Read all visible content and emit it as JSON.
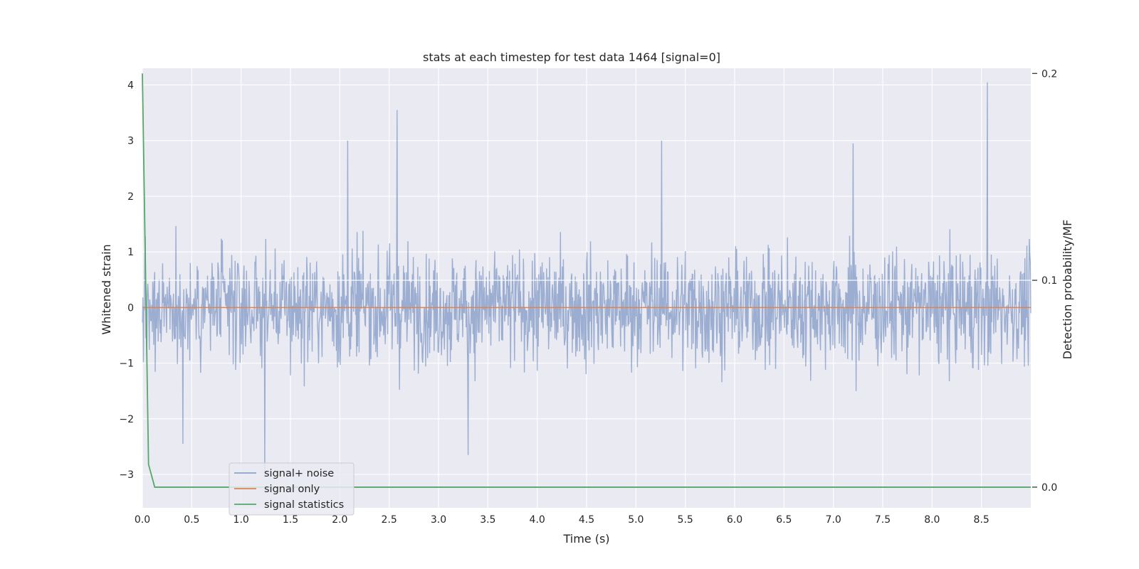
{
  "chart_data": {
    "type": "line",
    "title": "stats at each timestep for test data 1464 [signal=0]",
    "xlabel": "Time (s)",
    "ylabel": "Whitened strain",
    "y2label": "Detection probability/MF",
    "xlim": [
      0.0,
      9.0
    ],
    "ylim": [
      -3.6,
      4.3
    ],
    "y2lim": [
      -0.01,
      0.2025
    ],
    "xticks": [
      "0.0",
      "0.5",
      "1.0",
      "1.5",
      "2.0",
      "2.5",
      "3.0",
      "3.5",
      "4.0",
      "4.5",
      "5.0",
      "5.5",
      "6.0",
      "6.5",
      "7.0",
      "7.5",
      "8.0",
      "8.5"
    ],
    "yticks": [
      "−3",
      "−2",
      "−1",
      "0",
      "1",
      "2",
      "3",
      "4"
    ],
    "y2ticks": [
      "0.0",
      "0.1",
      "0.2"
    ],
    "grid": true,
    "legend_position": "lower-left",
    "series": [
      {
        "name": "signal+ noise",
        "axis": "left",
        "color": "#4c72b0",
        "style": "dense-noise",
        "duration": 9.0,
        "typical_amplitude": 1.0,
        "peaks": [
          {
            "x": 2.08,
            "y": 3.0
          },
          {
            "x": 2.58,
            "y": 3.55
          },
          {
            "x": 5.26,
            "y": 3.0
          },
          {
            "x": 7.2,
            "y": 2.95
          },
          {
            "x": 8.56,
            "y": 4.05
          },
          {
            "x": 1.24,
            "y": -3.05
          },
          {
            "x": 3.3,
            "y": -2.65
          },
          {
            "x": 0.41,
            "y": -2.45
          }
        ]
      },
      {
        "name": "signal only",
        "axis": "left",
        "color": "#dd8452",
        "x": [
          0.0,
          9.0
        ],
        "y": [
          0.0,
          0.0
        ]
      },
      {
        "name": "signal statistics",
        "axis": "right",
        "color": "#55a868",
        "x": [
          0.0,
          0.0625,
          0.125,
          0.1875,
          0.25,
          9.0
        ],
        "y": [
          0.2,
          0.011,
          0.0,
          0.0,
          0.0,
          0.0
        ]
      }
    ]
  }
}
